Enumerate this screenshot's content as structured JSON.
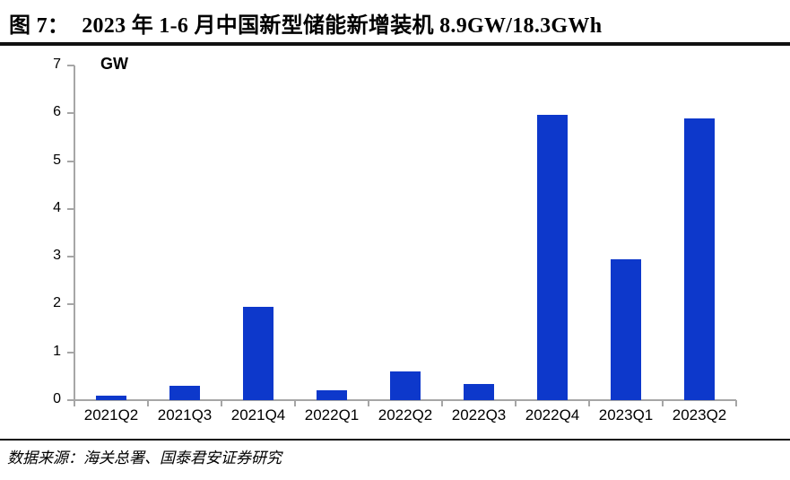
{
  "header": {
    "figure_label": "图 7：",
    "title": "2023 年 1-6 月中国新型储能新增装机 8.9GW/18.3GWh"
  },
  "chart_data": {
    "type": "bar",
    "title": "2023 年 1-6 月中国新型储能新增装机 8.9GW/18.3GWh",
    "ylabel": "GW",
    "xlabel": "",
    "categories": [
      "2021Q2",
      "2021Q3",
      "2021Q4",
      "2022Q1",
      "2022Q2",
      "2022Q3",
      "2022Q4",
      "2023Q1",
      "2023Q2"
    ],
    "values": [
      0.1,
      0.3,
      1.95,
      0.2,
      0.6,
      0.33,
      5.97,
      2.95,
      5.9
    ],
    "ylim": [
      0,
      7
    ],
    "ytick_interval": 1,
    "grid": false,
    "legend": "none",
    "bar_color": "#0D38CB",
    "axis_color": "#A6A6A6",
    "label_color": "#000000"
  },
  "footer": {
    "source": "数据来源：海关总署、国泰君安证券研究"
  }
}
